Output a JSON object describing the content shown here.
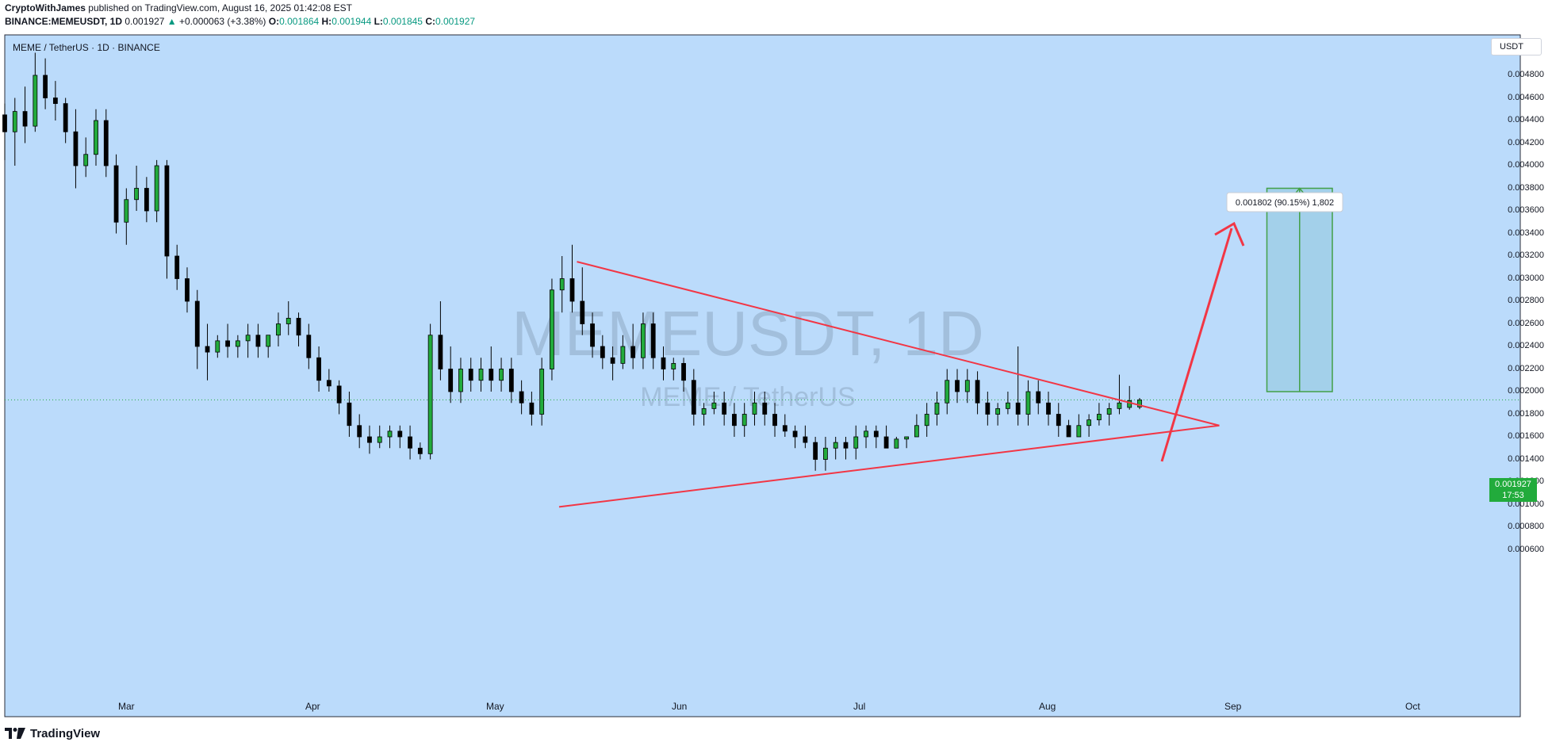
{
  "header": {
    "author": "CryptoWithJames",
    "published_text": "published on TradingView.com, August 16, 2025 01:42:08 EST",
    "symbol_full": "BINANCE:MEMEUSDT, 1D",
    "last_price": "0.001927",
    "change": "+0.000063 (+3.38%)",
    "o_label": "O:",
    "o_val": "0.001864",
    "h_label": "H:",
    "h_val": "0.001944",
    "l_label": "L:",
    "l_val": "0.001845",
    "c_label": "C:",
    "c_val": "0.001927"
  },
  "chart_symbol_label": "MEME / TetherUS · 1D · BINANCE",
  "watermark": {
    "main": "MEMEUSDT, 1D",
    "sub": "MEME / TetherUS"
  },
  "price_scale": {
    "unit": "USDT",
    "ticks": [
      "0.004800",
      "0.004600",
      "0.004400",
      "0.004200",
      "0.004000",
      "0.003800",
      "0.003600",
      "0.003400",
      "0.003200",
      "0.003000",
      "0.002800",
      "0.002600",
      "0.002400",
      "0.002200",
      "0.002000",
      "0.001800",
      "0.001600",
      "0.001400",
      "0.001200",
      "0.001000",
      "0.000800",
      "0.000600"
    ]
  },
  "current_price": {
    "price": "0.001927",
    "countdown": "17:53"
  },
  "time_axis": [
    "Mar",
    "Apr",
    "May",
    "Jun",
    "Jul",
    "Aug",
    "Sep",
    "Oct"
  ],
  "target_box": {
    "label": "0.001802 (90.15%) 1,802"
  },
  "footer": {
    "brand": "TradingView"
  },
  "colors": {
    "up": "#22ab3c",
    "down": "#000000",
    "line": "#f23645",
    "bg": "#bbdbfb",
    "target": "#a3d0ea"
  },
  "chart_data": {
    "type": "candlestick",
    "title": "MEME / TetherUS · 1D · BINANCE",
    "x_range": [
      "2025-02-01",
      "2025-10-07"
    ],
    "ylim": [
      0.0005,
      0.0051
    ],
    "candles_ohlc": [
      [
        0.00445,
        0.00455,
        0.00405,
        0.0043
      ],
      [
        0.0043,
        0.0046,
        0.004,
        0.00448
      ],
      [
        0.00448,
        0.0047,
        0.0042,
        0.00435
      ],
      [
        0.00435,
        0.005,
        0.0043,
        0.0048
      ],
      [
        0.0048,
        0.00495,
        0.0045,
        0.0046
      ],
      [
        0.0046,
        0.00475,
        0.0044,
        0.00455
      ],
      [
        0.00455,
        0.0046,
        0.0042,
        0.0043
      ],
      [
        0.0043,
        0.0045,
        0.0038,
        0.004
      ],
      [
        0.004,
        0.00425,
        0.0039,
        0.0041
      ],
      [
        0.0041,
        0.0045,
        0.004,
        0.0044
      ],
      [
        0.0044,
        0.0045,
        0.0039,
        0.004
      ],
      [
        0.004,
        0.0041,
        0.0034,
        0.0035
      ],
      [
        0.0035,
        0.0038,
        0.0033,
        0.0037
      ],
      [
        0.0037,
        0.004,
        0.0036,
        0.0038
      ],
      [
        0.0038,
        0.0039,
        0.0035,
        0.0036
      ],
      [
        0.0036,
        0.00405,
        0.0035,
        0.004
      ],
      [
        0.004,
        0.00405,
        0.003,
        0.0032
      ],
      [
        0.0032,
        0.0033,
        0.0029,
        0.003
      ],
      [
        0.003,
        0.0031,
        0.0027,
        0.0028
      ],
      [
        0.0028,
        0.0029,
        0.0022,
        0.0024
      ],
      [
        0.0024,
        0.0026,
        0.0021,
        0.00235
      ],
      [
        0.00235,
        0.0025,
        0.0023,
        0.00245
      ],
      [
        0.00245,
        0.0026,
        0.0023,
        0.0024
      ],
      [
        0.0024,
        0.0025,
        0.0023,
        0.00245
      ],
      [
        0.00245,
        0.0026,
        0.0023,
        0.0025
      ],
      [
        0.0025,
        0.0026,
        0.0023,
        0.0024
      ],
      [
        0.0024,
        0.0025,
        0.0023,
        0.0025
      ],
      [
        0.0025,
        0.0027,
        0.0024,
        0.0026
      ],
      [
        0.0026,
        0.0028,
        0.0025,
        0.00265
      ],
      [
        0.00265,
        0.0027,
        0.0024,
        0.0025
      ],
      [
        0.0025,
        0.0026,
        0.0022,
        0.0023
      ],
      [
        0.0023,
        0.0024,
        0.002,
        0.0021
      ],
      [
        0.0021,
        0.0022,
        0.002,
        0.00205
      ],
      [
        0.00205,
        0.0021,
        0.0018,
        0.0019
      ],
      [
        0.0019,
        0.002,
        0.0016,
        0.0017
      ],
      [
        0.0017,
        0.0018,
        0.0015,
        0.0016
      ],
      [
        0.0016,
        0.0017,
        0.00145,
        0.00155
      ],
      [
        0.00155,
        0.0017,
        0.0015,
        0.0016
      ],
      [
        0.0016,
        0.0017,
        0.0015,
        0.00165
      ],
      [
        0.00165,
        0.0017,
        0.0015,
        0.0016
      ],
      [
        0.0016,
        0.0017,
        0.0014,
        0.0015
      ],
      [
        0.0015,
        0.00155,
        0.0014,
        0.00145
      ],
      [
        0.00145,
        0.0026,
        0.0014,
        0.0025
      ],
      [
        0.0025,
        0.0028,
        0.0021,
        0.0022
      ],
      [
        0.0022,
        0.0024,
        0.0019,
        0.002
      ],
      [
        0.002,
        0.0023,
        0.0019,
        0.0022
      ],
      [
        0.0022,
        0.0023,
        0.002,
        0.0021
      ],
      [
        0.0021,
        0.0023,
        0.002,
        0.0022
      ],
      [
        0.0022,
        0.0024,
        0.002,
        0.0021
      ],
      [
        0.0021,
        0.0023,
        0.002,
        0.0022
      ],
      [
        0.0022,
        0.0023,
        0.0019,
        0.002
      ],
      [
        0.002,
        0.0021,
        0.0018,
        0.0019
      ],
      [
        0.0019,
        0.002,
        0.0017,
        0.0018
      ],
      [
        0.0018,
        0.0023,
        0.0017,
        0.0022
      ],
      [
        0.0022,
        0.003,
        0.0021,
        0.0029
      ],
      [
        0.0029,
        0.0032,
        0.0027,
        0.003
      ],
      [
        0.003,
        0.0033,
        0.0027,
        0.0028
      ],
      [
        0.0028,
        0.0031,
        0.0025,
        0.0026
      ],
      [
        0.0026,
        0.0027,
        0.0023,
        0.0024
      ],
      [
        0.0024,
        0.0025,
        0.0022,
        0.0023
      ],
      [
        0.0023,
        0.0024,
        0.0021,
        0.00225
      ],
      [
        0.00225,
        0.0025,
        0.0022,
        0.0024
      ],
      [
        0.0024,
        0.0026,
        0.0022,
        0.0023
      ],
      [
        0.0023,
        0.0027,
        0.0022,
        0.0026
      ],
      [
        0.0026,
        0.0027,
        0.0022,
        0.0023
      ],
      [
        0.0023,
        0.0024,
        0.0021,
        0.0022
      ],
      [
        0.0022,
        0.0023,
        0.0021,
        0.00225
      ],
      [
        0.00225,
        0.0023,
        0.002,
        0.0021
      ],
      [
        0.0021,
        0.0022,
        0.0017,
        0.0018
      ],
      [
        0.0018,
        0.0019,
        0.0017,
        0.00185
      ],
      [
        0.00185,
        0.002,
        0.0018,
        0.0019
      ],
      [
        0.0019,
        0.002,
        0.0017,
        0.0018
      ],
      [
        0.0018,
        0.0019,
        0.0016,
        0.0017
      ],
      [
        0.0017,
        0.0019,
        0.0016,
        0.0018
      ],
      [
        0.0018,
        0.002,
        0.0017,
        0.0019
      ],
      [
        0.0019,
        0.002,
        0.0017,
        0.0018
      ],
      [
        0.0018,
        0.0019,
        0.0016,
        0.0017
      ],
      [
        0.0017,
        0.0018,
        0.0016,
        0.00165
      ],
      [
        0.00165,
        0.0017,
        0.0015,
        0.0016
      ],
      [
        0.0016,
        0.0017,
        0.0015,
        0.00155
      ],
      [
        0.00155,
        0.0016,
        0.0013,
        0.0014
      ],
      [
        0.0014,
        0.0016,
        0.0013,
        0.0015
      ],
      [
        0.0015,
        0.0016,
        0.0014,
        0.00155
      ],
      [
        0.00155,
        0.0016,
        0.0014,
        0.0015
      ],
      [
        0.0015,
        0.0017,
        0.0014,
        0.0016
      ],
      [
        0.0016,
        0.0017,
        0.0015,
        0.00165
      ],
      [
        0.00165,
        0.0017,
        0.0015,
        0.0016
      ],
      [
        0.0016,
        0.0017,
        0.0015,
        0.0015
      ],
      [
        0.0015,
        0.0016,
        0.0015,
        0.00158
      ],
      [
        0.00158,
        0.0016,
        0.0015,
        0.0016
      ],
      [
        0.0016,
        0.0018,
        0.0016,
        0.0017
      ],
      [
        0.0017,
        0.0019,
        0.0016,
        0.0018
      ],
      [
        0.0018,
        0.002,
        0.0017,
        0.0019
      ],
      [
        0.0019,
        0.0022,
        0.0018,
        0.0021
      ],
      [
        0.0021,
        0.0022,
        0.0019,
        0.002
      ],
      [
        0.002,
        0.0022,
        0.0019,
        0.0021
      ],
      [
        0.0021,
        0.00218,
        0.0018,
        0.0019
      ],
      [
        0.0019,
        0.002,
        0.0017,
        0.0018
      ],
      [
        0.0018,
        0.0019,
        0.0017,
        0.00185
      ],
      [
        0.00185,
        0.002,
        0.0018,
        0.0019
      ],
      [
        0.0019,
        0.0024,
        0.0017,
        0.0018
      ],
      [
        0.0018,
        0.0021,
        0.0017,
        0.002
      ],
      [
        0.002,
        0.0021,
        0.0018,
        0.0019
      ],
      [
        0.0019,
        0.002,
        0.0017,
        0.0018
      ],
      [
        0.0018,
        0.0019,
        0.0016,
        0.0017
      ],
      [
        0.0017,
        0.00175,
        0.0016,
        0.0016
      ],
      [
        0.0016,
        0.0018,
        0.0016,
        0.0017
      ],
      [
        0.0017,
        0.0018,
        0.0016,
        0.00175
      ],
      [
        0.00175,
        0.0019,
        0.0017,
        0.0018
      ],
      [
        0.0018,
        0.0019,
        0.0017,
        0.00185
      ],
      [
        0.00185,
        0.00215,
        0.0018,
        0.0019
      ],
      [
        0.00186,
        0.00205,
        0.00184,
        0.00192
      ],
      [
        0.001864,
        0.001944,
        0.001845,
        0.001927
      ]
    ],
    "annotations": {
      "descending_trendline": {
        "from": [
          "2025-05-09",
          0.00315
        ],
        "to": [
          "2025-08-25",
          0.0017
        ]
      },
      "ascending_trendline": {
        "from": [
          "2025-05-06",
          0.00098
        ],
        "to": [
          "2025-08-25",
          0.0017
        ]
      },
      "target_box": {
        "from": [
          "2025-09-02",
          0.002
        ],
        "to": [
          "2025-09-13",
          0.0038
        ],
        "label": "0.001802 (90.15%) 1,802"
      }
    }
  }
}
